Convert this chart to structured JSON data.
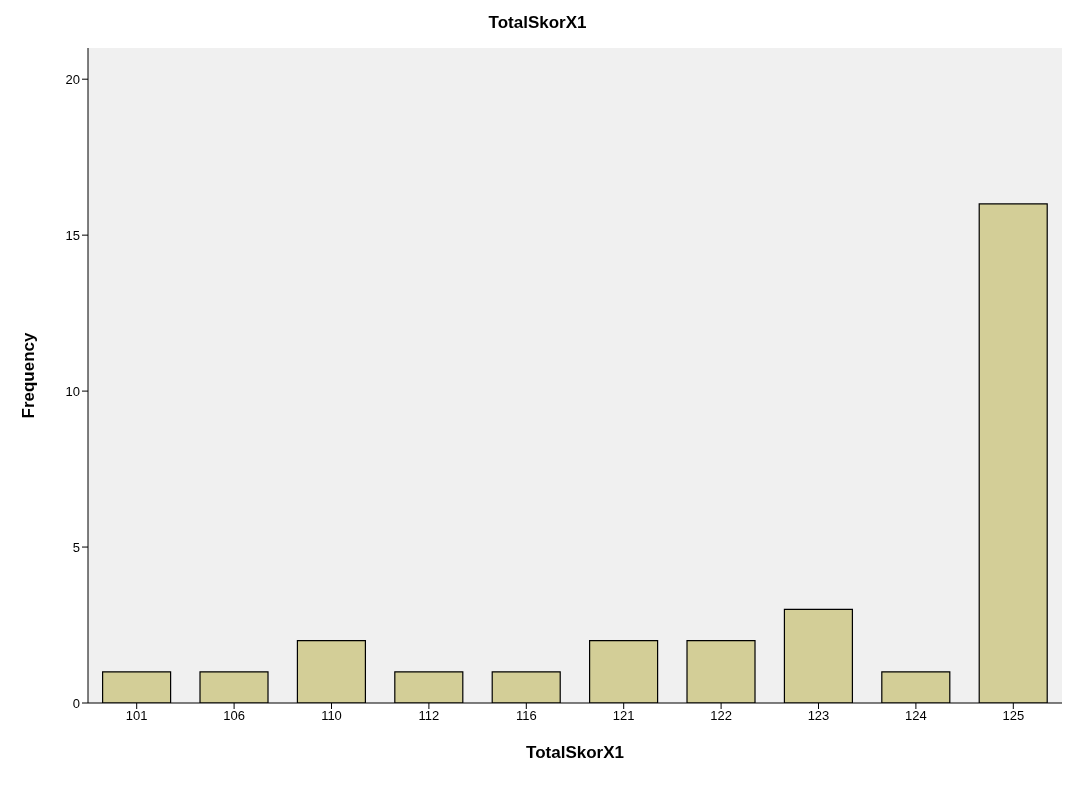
{
  "chart_data": {
    "type": "bar",
    "title": "TotalSkorX1",
    "xlabel": "TotalSkorX1",
    "ylabel": "Frequency",
    "categories": [
      "101",
      "106",
      "110",
      "112",
      "116",
      "121",
      "122",
      "123",
      "124",
      "125"
    ],
    "values": [
      1,
      1,
      2,
      1,
      1,
      2,
      2,
      3,
      1,
      16
    ],
    "color": "#d3ce97",
    "ylim": [
      0,
      21
    ],
    "yticks": [
      0,
      5,
      10,
      15,
      20
    ],
    "grid": false,
    "legend": false
  }
}
